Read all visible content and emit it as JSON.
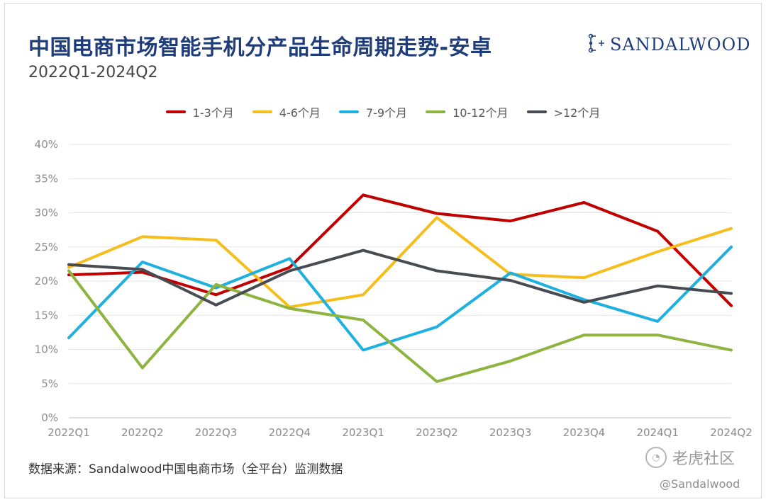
{
  "header": {
    "title": "中国电商市场智能手机分产品生命周期走势-安卓",
    "subtitle": "2022Q1-2024Q2",
    "brand": "SANDALWOOD",
    "brand_icon": "sandalwood-logo-icon"
  },
  "footer": {
    "source": "数据来源：Sandalwood中国电商市场（全平台）监测数据",
    "watermark": "老虎社区",
    "handle": "@Sandalwood"
  },
  "chart_data": {
    "type": "line",
    "title": "",
    "xlabel": "",
    "ylabel": "",
    "categories": [
      "2022Q1",
      "2022Q2",
      "2022Q3",
      "2022Q4",
      "2023Q1",
      "2023Q2",
      "2023Q3",
      "2023Q4",
      "2024Q1",
      "2024Q2"
    ],
    "y_ticks": [
      "0%",
      "5%",
      "10%",
      "15%",
      "20%",
      "25%",
      "30%",
      "35%",
      "40%"
    ],
    "ylim": [
      0,
      40
    ],
    "grid": true,
    "legend_position": "top-center",
    "series": [
      {
        "name": "1-3个月",
        "color": "#c00000",
        "values": [
          20.9,
          21.3,
          18.0,
          22.0,
          32.6,
          29.9,
          28.8,
          31.5,
          27.3,
          16.4
        ]
      },
      {
        "name": "4-6个月",
        "color": "#f5be1c",
        "values": [
          22.0,
          26.5,
          26.0,
          16.2,
          18.0,
          29.3,
          21.0,
          20.5,
          24.3,
          27.7
        ]
      },
      {
        "name": "7-9个月",
        "color": "#1fb0e2",
        "values": [
          11.7,
          22.8,
          19.0,
          23.3,
          9.9,
          13.3,
          21.2,
          17.3,
          14.1,
          25.0
        ]
      },
      {
        "name": "10-12个月",
        "color": "#8db43f",
        "values": [
          21.5,
          7.3,
          19.5,
          16.0,
          14.3,
          5.3,
          8.3,
          12.1,
          12.1,
          9.9
        ]
      },
      {
        "name": ">12个月",
        "color": "#474b52",
        "values": [
          22.4,
          21.7,
          16.5,
          21.5,
          24.5,
          21.5,
          20.1,
          16.9,
          19.3,
          18.2
        ]
      }
    ]
  }
}
